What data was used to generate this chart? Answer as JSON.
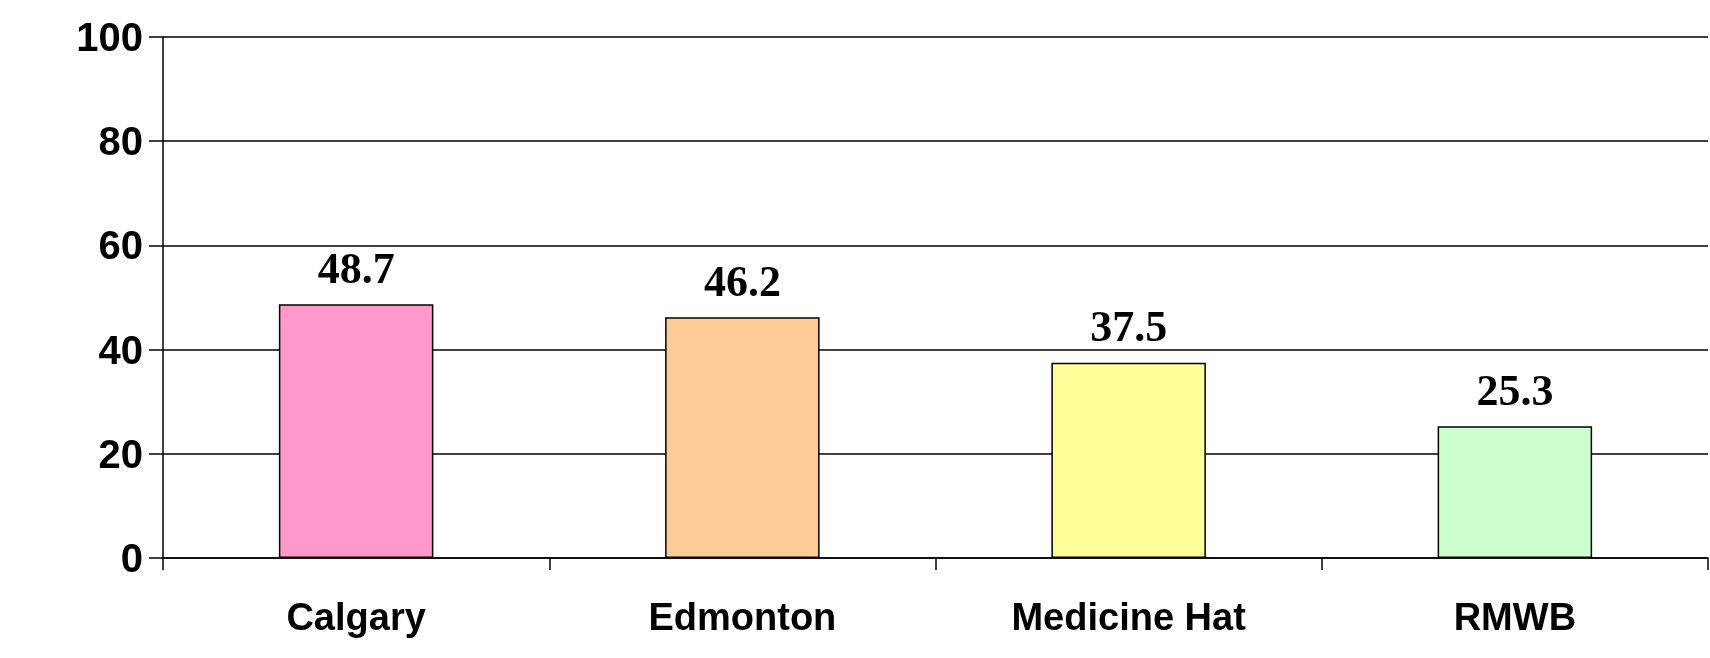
{
  "chart_data": {
    "type": "bar",
    "categories": [
      "Calgary",
      "Edmonton",
      "Medicine Hat",
      "RMWB"
    ],
    "values": [
      48.7,
      46.2,
      37.5,
      25.3
    ],
    "colors": [
      "#ff99cc",
      "#ffcc99",
      "#ffff99",
      "#ccffcc"
    ],
    "ylim": [
      0,
      100
    ],
    "yticks": [
      0,
      20,
      40,
      60,
      80,
      100
    ],
    "grid": "y",
    "data_labels": true
  }
}
